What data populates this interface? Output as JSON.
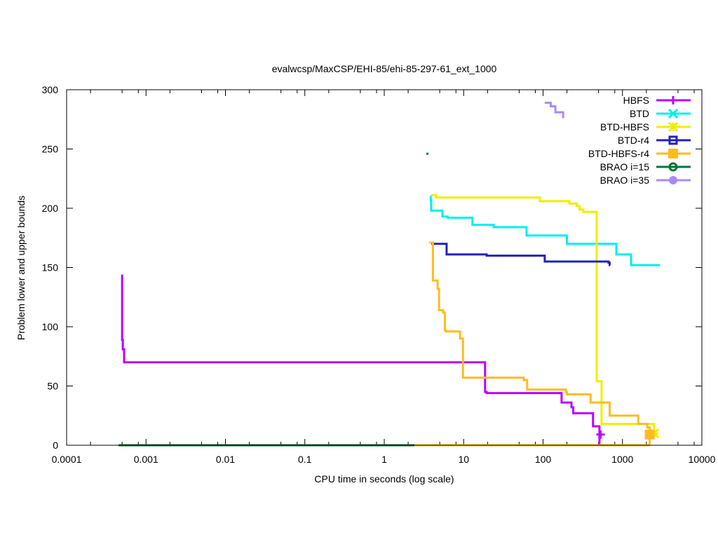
{
  "chart_data": {
    "type": "line",
    "title": "evalwcsp/MaxCSP/EHI-85/ehi-85-297-61_ext_1000",
    "xlabel": "CPU time in seconds (log scale)",
    "ylabel": "Problem lower and upper bounds",
    "xscale": "log",
    "xlim": [
      0.0001,
      10000
    ],
    "ylim": [
      0,
      300
    ],
    "xticks": [
      "0.0001",
      "0.001",
      "0.01",
      "0.1",
      "1",
      "10",
      "100",
      "1000",
      "10000"
    ],
    "xtick_values": [
      0.0001,
      0.001,
      0.01,
      0.1,
      1,
      10,
      100,
      1000,
      10000
    ],
    "yticks": [
      0,
      50,
      100,
      150,
      200,
      250,
      300
    ],
    "grid": false,
    "legend_position": "top-right",
    "series": [
      {
        "name": "HBFS",
        "color": "#bb00ff",
        "marker": "plus",
        "upper": [
          [
            0.0005,
            144
          ],
          [
            0.0005,
            89
          ],
          [
            0.00051,
            81
          ],
          [
            0.00053,
            70
          ],
          [
            18.6,
            45
          ],
          [
            19.5,
            44
          ],
          [
            171,
            36
          ],
          [
            228,
            32
          ],
          [
            240,
            27
          ],
          [
            426,
            16
          ],
          [
            513,
            0
          ]
        ],
        "lower": [
          [
            0.00045,
            0
          ],
          [
            2.4,
            0
          ]
        ],
        "final_marker": [
          530,
          9
        ]
      },
      {
        "name": "BTD",
        "color": "#00eeee",
        "marker": "cross",
        "upper": [
          [
            3.8,
            210
          ],
          [
            3.85,
            207
          ],
          [
            3.9,
            198
          ],
          [
            5.4,
            193
          ],
          [
            6.3,
            192
          ],
          [
            12.9,
            186
          ],
          [
            23.9,
            184
          ],
          [
            62,
            177
          ],
          [
            200,
            170
          ],
          [
            838,
            161
          ],
          [
            1282,
            152
          ],
          [
            2880,
            151
          ]
        ]
      },
      {
        "name": "BTD-HBFS",
        "color": "#eeee00",
        "marker": "star",
        "upper": [
          [
            3.9,
            211
          ],
          [
            4.5,
            209
          ],
          [
            91,
            206
          ],
          [
            214,
            204
          ],
          [
            265,
            202
          ],
          [
            287,
            199
          ],
          [
            322,
            197
          ],
          [
            473,
            54
          ],
          [
            545,
            18
          ],
          [
            2510,
            10
          ]
        ],
        "final_marker": [
          2510,
          10
        ]
      },
      {
        "name": "BTD-r4",
        "color": "#2222bb",
        "marker": "square",
        "upper": [
          [
            3.9,
            170
          ],
          [
            6.1,
            161
          ],
          [
            19.5,
            160
          ],
          [
            105,
            155
          ],
          [
            668,
            154
          ],
          [
            690,
            152
          ],
          [
            700,
            152
          ]
        ]
      },
      {
        "name": "BTD-HBFS-r4",
        "color": "#ffbb22",
        "marker": "filled-square",
        "upper": [
          [
            3.7,
            171
          ],
          [
            4.1,
            139
          ],
          [
            4.7,
            132
          ],
          [
            4.9,
            114
          ],
          [
            5.5,
            112
          ],
          [
            5.8,
            97
          ],
          [
            6.0,
            96
          ],
          [
            9.0,
            90
          ],
          [
            9.8,
            57
          ],
          [
            57,
            55
          ],
          [
            63,
            47
          ],
          [
            194,
            45
          ],
          [
            200,
            43
          ],
          [
            397,
            36
          ],
          [
            690,
            25
          ],
          [
            1580,
            18
          ],
          [
            2050,
            15
          ],
          [
            2200,
            0
          ]
        ],
        "lower": [
          [
            2.4,
            0
          ],
          [
            2200,
            0
          ]
        ],
        "final_marker": [
          2200,
          9
        ]
      },
      {
        "name": "BRAO i=15",
        "color": "#007733",
        "marker": "circle",
        "upper": [
          [
            3.5,
            246
          ]
        ],
        "lower": [
          [
            0.00045,
            0
          ],
          [
            2.4,
            0
          ]
        ]
      },
      {
        "name": "BRAO i=35",
        "color": "#aa88ff",
        "marker": "filled-circle",
        "upper": [
          [
            105,
            289
          ],
          [
            125,
            286
          ],
          [
            143,
            281
          ],
          [
            179,
            276
          ]
        ]
      }
    ]
  }
}
